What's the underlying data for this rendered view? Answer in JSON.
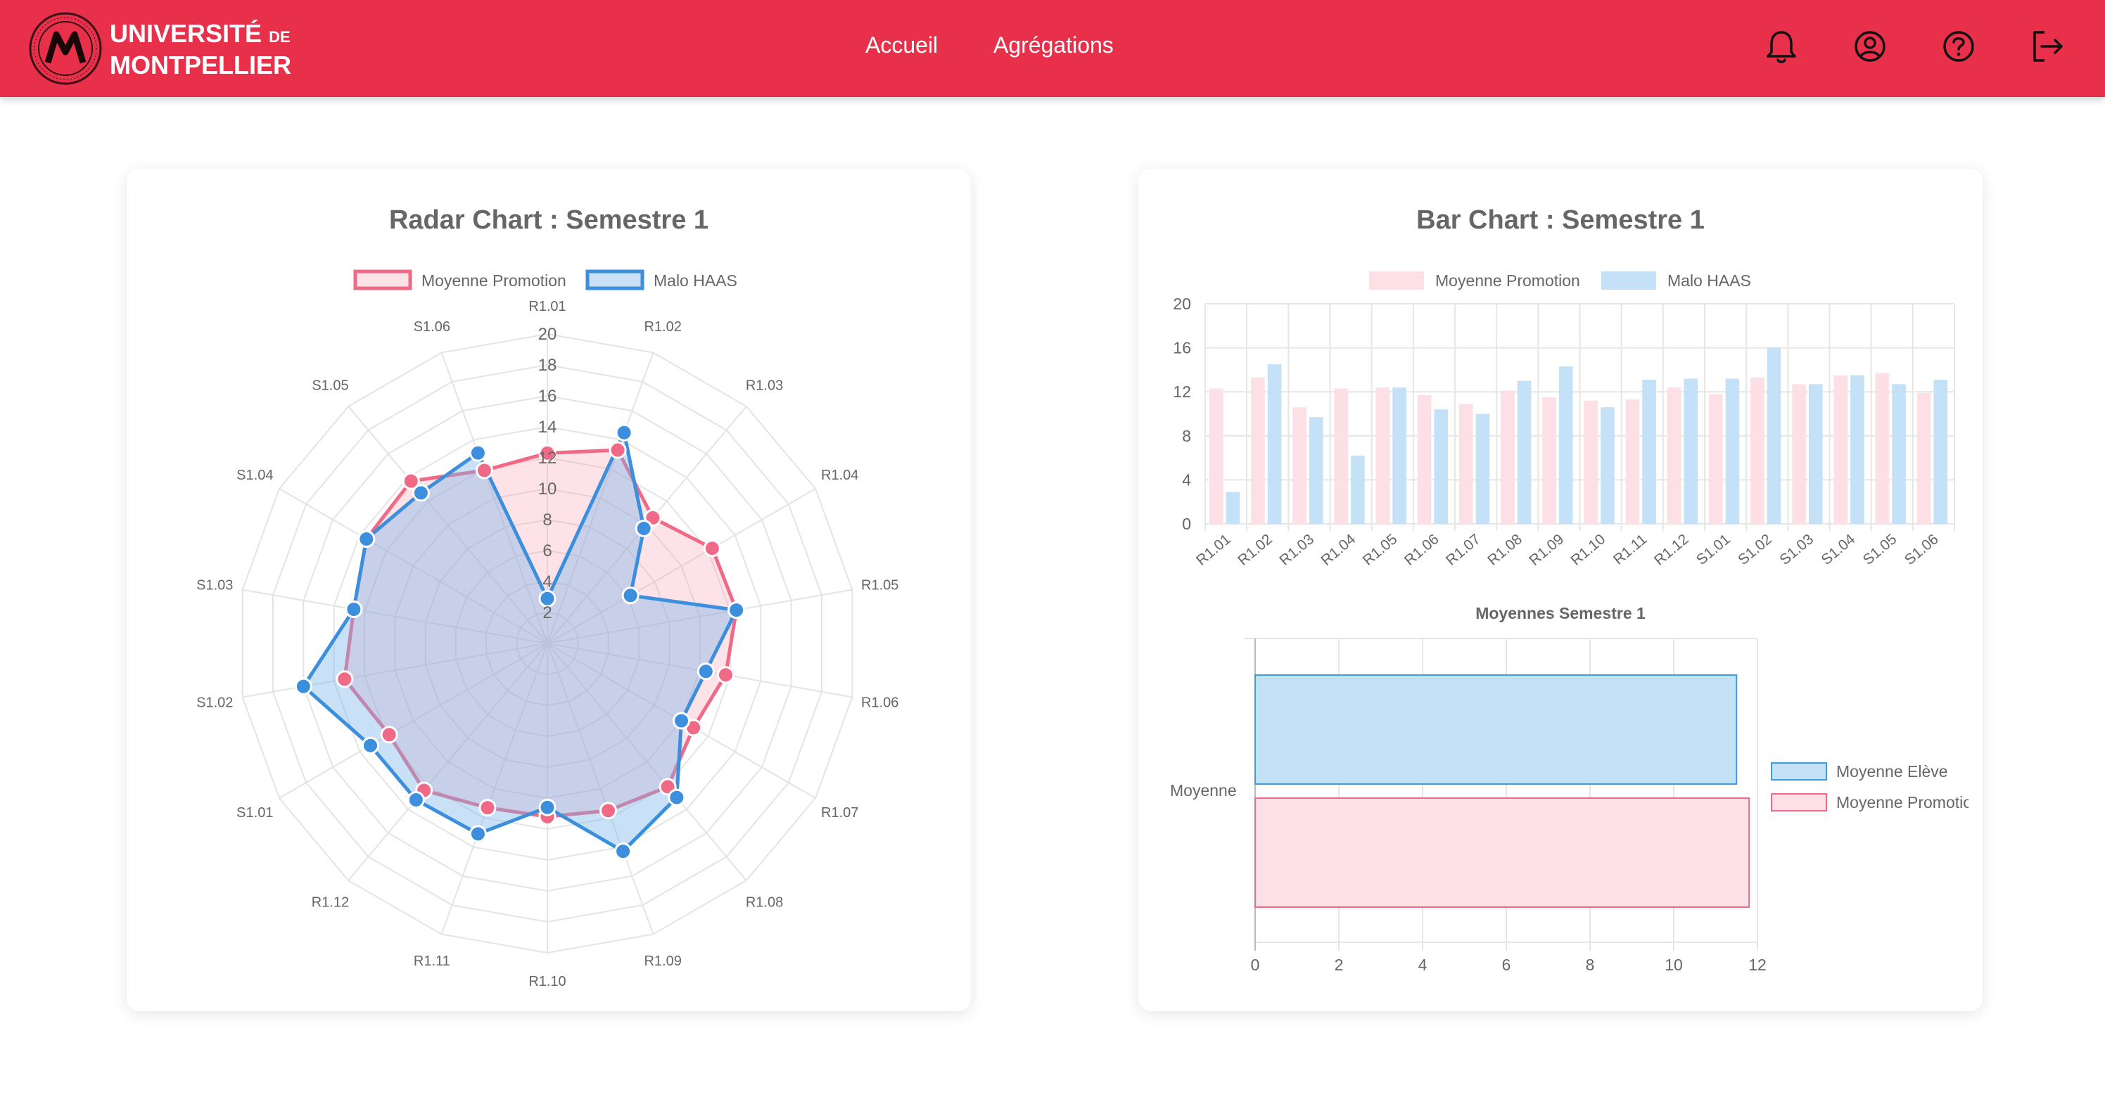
{
  "header": {
    "logo": {
      "line1": "UNIVERSITÉ",
      "line1_suffix": "DE",
      "line2": "MONTPELLIER"
    },
    "nav": [
      {
        "label": "Accueil"
      },
      {
        "label": "Agrégations"
      }
    ],
    "icons": [
      "bell-icon",
      "user-circle-icon",
      "help-circle-icon",
      "logout-icon"
    ],
    "color": "#e8304a"
  },
  "radar_card": {
    "title": "Radar Chart : Semestre 1"
  },
  "bar_card": {
    "title": "Bar Chart : Semestre 1",
    "subchart_title": "Moyennes Semestre 1"
  },
  "chart_data": [
    {
      "type": "radar",
      "title": "Radar Chart : Semestre 1",
      "legend_position": "top",
      "categories": [
        "R1.01",
        "R1.02",
        "R1.03",
        "R1.04",
        "R1.05",
        "R1.06",
        "R1.07",
        "R1.08",
        "R1.09",
        "R1.10",
        "R1.11",
        "R1.12",
        "S1.01",
        "S1.02",
        "S1.03",
        "S1.04",
        "S1.05",
        "S1.06"
      ],
      "r_ticks": [
        "2",
        "4",
        "6",
        "8",
        "10",
        "12",
        "14",
        "16",
        "18",
        "20"
      ],
      "r_range": [
        0,
        20
      ],
      "series": [
        {
          "name": "Moyenne Promotion",
          "color": "#f06a87",
          "fill": "rgba(248,150,172,0.28)",
          "values": [
            12.3,
            13.3,
            10.6,
            12.3,
            12.4,
            11.7,
            10.9,
            12.1,
            11.5,
            11.2,
            11.3,
            12.4,
            11.8,
            13.3,
            12.7,
            13.5,
            13.7,
            11.9
          ]
        },
        {
          "name": "Malo HAAS",
          "color": "#3b8fdc",
          "fill": "rgba(120,180,235,0.40)",
          "values": [
            2.9,
            14.5,
            9.7,
            6.2,
            12.4,
            10.4,
            10.0,
            13.0,
            14.3,
            10.6,
            13.1,
            13.2,
            13.2,
            16.0,
            12.7,
            13.5,
            12.7,
            13.1
          ]
        }
      ]
    },
    {
      "type": "bar",
      "title": "Bar Chart : Semestre 1",
      "legend_position": "top",
      "categories": [
        "R1.01",
        "R1.02",
        "R1.03",
        "R1.04",
        "R1.05",
        "R1.06",
        "R1.07",
        "R1.08",
        "R1.09",
        "R1.10",
        "R1.11",
        "R1.12",
        "S1.01",
        "S1.02",
        "S1.03",
        "S1.04",
        "S1.05",
        "S1.06"
      ],
      "y_ticks": [
        "0",
        "4",
        "8",
        "12",
        "16",
        "20"
      ],
      "ylim": [
        0,
        20
      ],
      "series": [
        {
          "name": "Moyenne Promotion",
          "color": "#fde0e6",
          "values": [
            12.3,
            13.3,
            10.6,
            12.3,
            12.4,
            11.7,
            10.9,
            12.1,
            11.5,
            11.2,
            11.3,
            12.4,
            11.8,
            13.3,
            12.7,
            13.5,
            13.7,
            11.9
          ]
        },
        {
          "name": "Malo HAAS",
          "color": "#c5e1f7",
          "values": [
            2.9,
            14.5,
            9.7,
            6.2,
            12.4,
            10.4,
            10.0,
            13.0,
            14.3,
            10.6,
            13.1,
            13.2,
            13.2,
            16.0,
            12.7,
            13.5,
            12.7,
            13.1
          ]
        }
      ]
    },
    {
      "type": "bar",
      "orientation": "horizontal",
      "title": "Moyennes Semestre 1",
      "legend_position": "right",
      "categories": [
        "Moyenne"
      ],
      "x_ticks": [
        "0",
        "2",
        "4",
        "6",
        "8",
        "10",
        "12"
      ],
      "xlim": [
        0,
        12
      ],
      "series": [
        {
          "name": "Moyenne Elève",
          "color": "#c5e1f7",
          "border": "#3b9de0",
          "values": [
            11.5
          ]
        },
        {
          "name": "Moyenne Promotion",
          "color": "#fde0e6",
          "border": "#f06a87",
          "values": [
            11.8
          ]
        }
      ]
    }
  ]
}
